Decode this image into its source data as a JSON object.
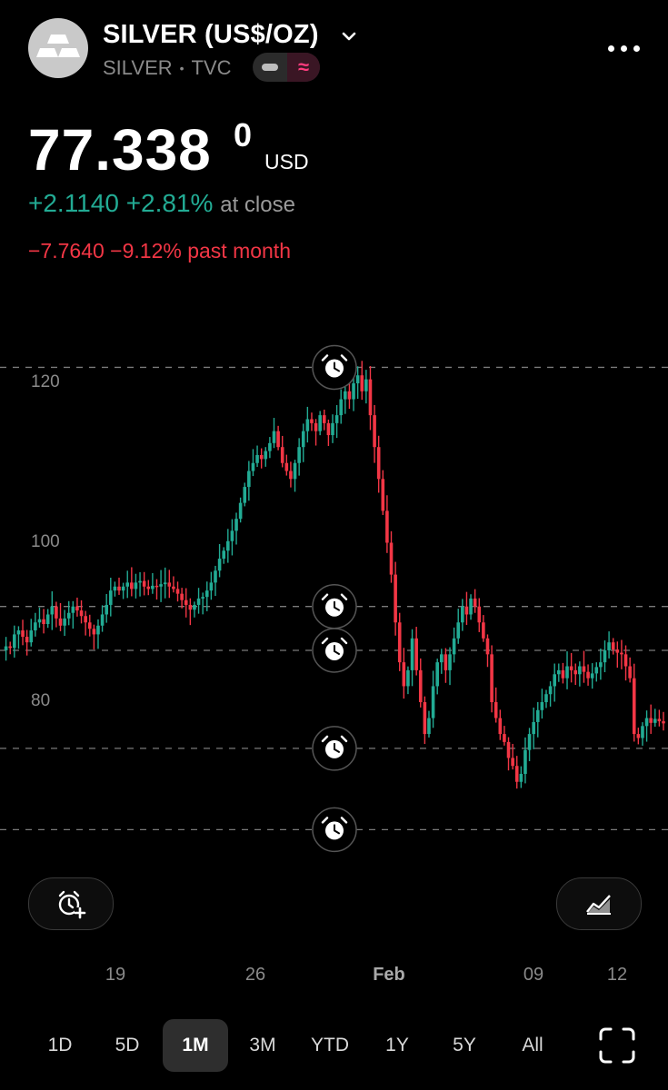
{
  "header": {
    "title": "SILVER (US$/OZ)",
    "exchange": "SILVER",
    "separator": "•",
    "source": "TVC",
    "pill_icon": "≈"
  },
  "quote": {
    "price": "77.338",
    "price_super": "0",
    "currency": "USD",
    "change_abs": "+2.1140",
    "change_pct": "+2.81%",
    "change_note": "at close",
    "month_change": "−7.7640 −9.12% past month"
  },
  "chart_data": {
    "type": "candlestick",
    "y_ticks": [
      "120",
      "100",
      "80"
    ],
    "x_ticks": [
      "19",
      "26",
      "Feb",
      "09",
      "12"
    ],
    "alert_levels": [
      122.0,
      92.0,
      86.5,
      74.2,
      64.0
    ],
    "ylim": [
      60,
      130
    ],
    "colors": {
      "up": "#22ab94",
      "down": "#f23645",
      "grid": "#7a7a7a"
    },
    "path": [
      86.5,
      87.0,
      86.8,
      88.5,
      89.0,
      88.2,
      87.5,
      89.0,
      90.0,
      90.4,
      89.8,
      91.0,
      92.0,
      90.5,
      89.6,
      90.5,
      91.2,
      92.0,
      91.5,
      90.8,
      90.0,
      89.2,
      88.5,
      89.6,
      91.0,
      92.2,
      94.0,
      94.5,
      94.0,
      94.5,
      95.0,
      94.2,
      95.0,
      95.2,
      94.5,
      94.2,
      94.6,
      94.5,
      94.8,
      95.0,
      94.5,
      94.2,
      93.6,
      92.8,
      92.2,
      91.6,
      92.2,
      93.0,
      93.2,
      94.0,
      95.0,
      96.5,
      98.0,
      99.0,
      100.2,
      101.5,
      103.0,
      105.0,
      107.0,
      109.0,
      110.0,
      111.0,
      110.5,
      111.5,
      112.5,
      114.0,
      112.0,
      110.0,
      109.0,
      108.0,
      110.0,
      112.0,
      114.0,
      115.5,
      115.0,
      114.0,
      116.0,
      115.0,
      113.5,
      115.0,
      116.0,
      118.0,
      119.0,
      118.0,
      120.0,
      121.0,
      119.0,
      120.5,
      116.0,
      112.0,
      108.0,
      104.0,
      100.0,
      96.0,
      90.0,
      85.0,
      82.0,
      84.0,
      88.0,
      84.0,
      80.0,
      76.0,
      78.0,
      82.0,
      85.0,
      86.0,
      84.0,
      86.0,
      88.0,
      90.0,
      92.0,
      91.0,
      93.0,
      92.0,
      90.0,
      88.0,
      86.0,
      80.0,
      78.0,
      76.0,
      75.0,
      73.0,
      72.0,
      70.0,
      71.0,
      74.0,
      76.0,
      77.5,
      79.0,
      80.0,
      81.0,
      82.0,
      83.5,
      84.0,
      83.0,
      84.5,
      84.0,
      83.5,
      84.5,
      83.8,
      83.0,
      83.6,
      84.4,
      85.0,
      86.5,
      87.5,
      86.6,
      86.2,
      86.0,
      84.5,
      83.0,
      76.0,
      75.5,
      77.0,
      78.0,
      77.4,
      77.9,
      77.6,
      77.338
    ]
  },
  "actions": {
    "add_alert_icon": "alarm-plus-icon",
    "indicator_icon": "chart-compare-icon"
  },
  "ranges": [
    "1D",
    "5D",
    "1M",
    "3M",
    "YTD",
    "1Y",
    "5Y",
    "All"
  ],
  "selected_range": "1M"
}
